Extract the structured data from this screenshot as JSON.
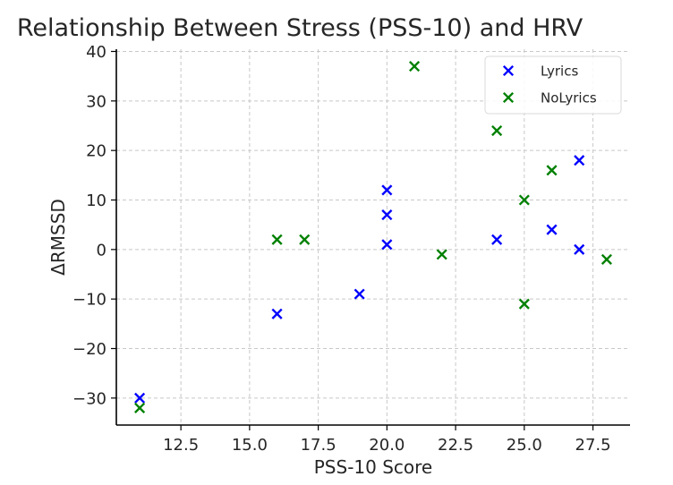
{
  "chart_data": {
    "type": "scatter",
    "title": "Relationship Between Stress (PSS-10) and HRV",
    "xlabel": "PSS-10 Score",
    "ylabel": "ΔRMSSD",
    "xlim": [
      10.15,
      28.85
    ],
    "ylim": [
      -35.45,
      40.45
    ],
    "x_ticks": [
      12.5,
      15.0,
      17.5,
      20.0,
      22.5,
      25.0,
      27.5
    ],
    "x_tick_labels": [
      "12.5",
      "15.0",
      "17.5",
      "20.0",
      "22.5",
      "25.0",
      "27.5"
    ],
    "y_ticks": [
      -30,
      -20,
      -10,
      0,
      10,
      20,
      30,
      40
    ],
    "y_tick_labels": [
      "−30",
      "−20",
      "−10",
      "0",
      "10",
      "20",
      "30",
      "40"
    ],
    "grid": true,
    "legend_position": "top-right",
    "marker": "x",
    "series": [
      {
        "name": "Lyrics",
        "color": "#0000ff",
        "points": [
          {
            "x": 11,
            "y": -30
          },
          {
            "x": 16,
            "y": -13
          },
          {
            "x": 19,
            "y": -9
          },
          {
            "x": 20,
            "y": 12
          },
          {
            "x": 20,
            "y": 7
          },
          {
            "x": 20,
            "y": 1
          },
          {
            "x": 24,
            "y": 2
          },
          {
            "x": 26,
            "y": 4
          },
          {
            "x": 27,
            "y": 18
          },
          {
            "x": 27,
            "y": 0
          }
        ]
      },
      {
        "name": "NoLyrics",
        "color": "#008000",
        "points": [
          {
            "x": 11,
            "y": -32
          },
          {
            "x": 16,
            "y": 2
          },
          {
            "x": 17,
            "y": 2
          },
          {
            "x": 21,
            "y": 37
          },
          {
            "x": 22,
            "y": -1
          },
          {
            "x": 24,
            "y": 24
          },
          {
            "x": 25,
            "y": 10
          },
          {
            "x": 25,
            "y": -11
          },
          {
            "x": 26,
            "y": 16
          },
          {
            "x": 28,
            "y": -2
          }
        ]
      }
    ]
  }
}
